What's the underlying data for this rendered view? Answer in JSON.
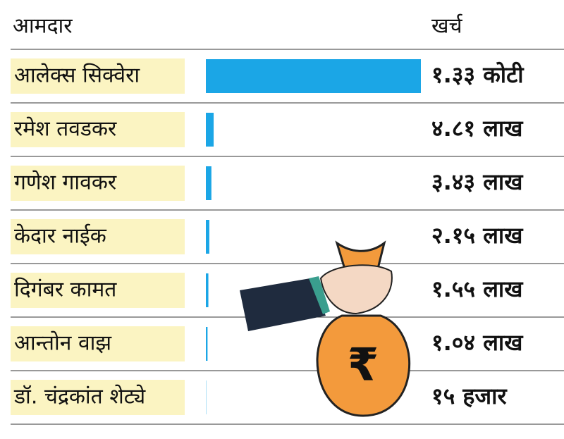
{
  "chart_data": {
    "type": "bar",
    "orientation": "horizontal",
    "category_header": "आमदार",
    "value_header": "खर्च",
    "categories": [
      "आलेक्स सिक्वेरा",
      "रमेश तवडकर",
      "गणेश गावकर",
      "केदार नाईक",
      "दिगंबर कामत",
      "आन्तोन वाझ",
      "डॉ. चंद्रकांत शेट्ये"
    ],
    "values": [
      13300000,
      481000,
      343000,
      215000,
      155000,
      104000,
      15000
    ],
    "value_labels": [
      "१.३३ कोटी",
      "४.८१ लाख",
      "३.४३ लाख",
      "२.१५ लाख",
      "१.५५ लाख",
      "१.०४ लाख",
      "१५ हजार"
    ],
    "color": "#1ba6e6",
    "illustration_symbol": "₹"
  }
}
